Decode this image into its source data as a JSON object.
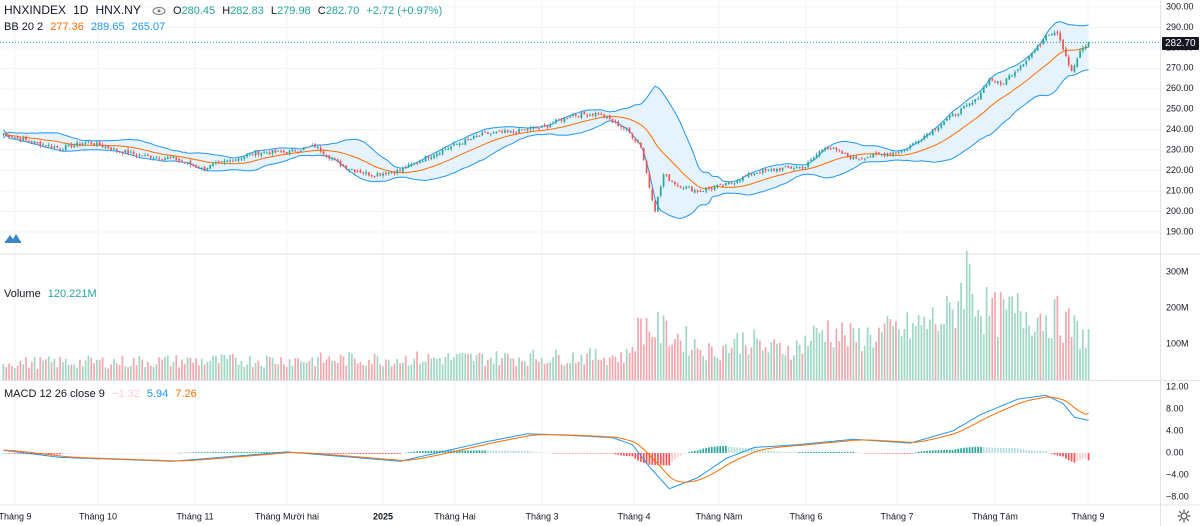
{
  "header": {
    "symbol": "HNXINDEX",
    "interval": "1D",
    "exchange": "HNX.NY",
    "open_label": "O",
    "open": "280.45",
    "high_label": "H",
    "high": "282.83",
    "low_label": "L",
    "low": "279.98",
    "close_label": "C",
    "close": "282.70",
    "change": "+2.72 (+0.97%)"
  },
  "bb_legend": {
    "name": "BB 20 2",
    "basis": "277.36",
    "upper": "289.65",
    "lower": "265.07"
  },
  "volume_legend": {
    "name": "Volume",
    "value": "120.221M"
  },
  "macd_legend": {
    "name": "MACD 12 26 close 9",
    "hist": "−1.32",
    "macd": "5.94",
    "signal": "7.26"
  },
  "last_price_tag": "282.70",
  "colors": {
    "up": "#26a69a",
    "down": "#ef5350",
    "vol_up": "#9fd7c3",
    "vol_down": "#f4a7ae",
    "bb_band": "#2196f3",
    "bb_basis": "#ff6d00",
    "bb_fill": "#e6f2fc",
    "macd": "#2196f3",
    "signal": "#ff6d00",
    "hist_up_strong": "#26a69a",
    "hist_up_weak": "#b2dfdb",
    "hist_down_strong": "#ff5252",
    "hist_down_weak": "#ffcdd2"
  },
  "chart_data": [
    {
      "type": "candlestick",
      "title": "HNXINDEX 1D HNX.NY",
      "y_ticks": [
        "300.00",
        "290.00",
        "280.00",
        "270.00",
        "260.00",
        "250.00",
        "240.00",
        "230.00",
        "220.00",
        "210.00",
        "200.00",
        "190.00"
      ],
      "ylim": [
        185,
        300
      ],
      "x_labels": [
        "Tháng 9",
        "Tháng 10",
        "Tháng 11",
        "Tháng Mười hai",
        "2025",
        "Tháng Hai",
        "Tháng 3",
        "Tháng 4",
        "Tháng Năm",
        "Tháng 6",
        "Tháng 7",
        "Tháng Tám",
        "Tháng 9"
      ],
      "close_keypoints": [
        [
          0,
          238
        ],
        [
          10,
          234
        ],
        [
          20,
          231
        ],
        [
          30,
          234
        ],
        [
          40,
          230
        ],
        [
          50,
          227
        ],
        [
          60,
          226
        ],
        [
          70,
          221
        ],
        [
          80,
          225
        ],
        [
          90,
          229
        ],
        [
          100,
          229
        ],
        [
          110,
          232
        ],
        [
          120,
          222
        ],
        [
          130,
          218
        ],
        [
          140,
          220
        ],
        [
          150,
          227
        ],
        [
          160,
          233
        ],
        [
          170,
          238
        ],
        [
          180,
          239
        ],
        [
          190,
          241
        ],
        [
          200,
          247
        ],
        [
          210,
          248
        ],
        [
          220,
          240
        ],
        [
          225,
          232
        ],
        [
          228,
          212
        ],
        [
          230,
          201
        ],
        [
          233,
          218
        ],
        [
          238,
          213
        ],
        [
          245,
          210
        ],
        [
          255,
          213
        ],
        [
          265,
          219
        ],
        [
          275,
          221
        ],
        [
          283,
          222
        ],
        [
          290,
          232
        ],
        [
          300,
          226
        ],
        [
          310,
          228
        ],
        [
          318,
          230
        ],
        [
          325,
          237
        ],
        [
          335,
          247
        ],
        [
          343,
          254
        ],
        [
          348,
          265
        ],
        [
          352,
          262
        ],
        [
          360,
          273
        ],
        [
          365,
          280
        ],
        [
          368,
          287
        ],
        [
          372,
          288
        ],
        [
          375,
          276
        ],
        [
          377,
          268
        ],
        [
          380,
          278
        ],
        [
          383,
          282.7
        ]
      ],
      "bollinger": {
        "length": 20,
        "mult": 2,
        "basis_last": 277.36,
        "upper_last": 289.65,
        "lower_last": 265.07
      }
    },
    {
      "type": "bar",
      "title": "Volume",
      "y_ticks": [
        "300M",
        "200M",
        "100M"
      ],
      "ylim": [
        0,
        330
      ],
      "unit": "M",
      "volume_keypoints": [
        [
          0,
          50
        ],
        [
          60,
          55
        ],
        [
          120,
          60
        ],
        [
          180,
          65
        ],
        [
          220,
          70
        ],
        [
          225,
          160
        ],
        [
          230,
          150
        ],
        [
          240,
          120
        ],
        [
          250,
          80
        ],
        [
          262,
          120
        ],
        [
          270,
          90
        ],
        [
          280,
          95
        ],
        [
          290,
          150
        ],
        [
          300,
          120
        ],
        [
          320,
          150
        ],
        [
          335,
          190
        ],
        [
          340,
          320
        ],
        [
          345,
          210
        ],
        [
          350,
          190
        ],
        [
          360,
          200
        ],
        [
          372,
          180
        ],
        [
          383,
          120
        ]
      ]
    },
    {
      "type": "line",
      "title": "MACD 12 26 close 9",
      "y_ticks": [
        "12.00",
        "8.00",
        "4.00",
        "0.00",
        "−4.00",
        "−8.00"
      ],
      "ylim": [
        -10,
        12.5
      ],
      "series": [
        {
          "name": "MACD",
          "last": 5.94
        },
        {
          "name": "Signal",
          "last": 7.26
        },
        {
          "name": "Histogram",
          "last": -1.32
        }
      ],
      "macd_keypoints": [
        [
          0,
          0.5
        ],
        [
          20,
          -0.8
        ],
        [
          60,
          -1.5
        ],
        [
          100,
          0.2
        ],
        [
          140,
          -1.5
        ],
        [
          170,
          2.0
        ],
        [
          185,
          3.5
        ],
        [
          200,
          3.2
        ],
        [
          215,
          2.8
        ],
        [
          222,
          1.5
        ],
        [
          228,
          -2.5
        ],
        [
          235,
          -6.5
        ],
        [
          245,
          -4.5
        ],
        [
          255,
          -1.0
        ],
        [
          265,
          1.0
        ],
        [
          280,
          1.5
        ],
        [
          300,
          2.5
        ],
        [
          320,
          1.8
        ],
        [
          335,
          4.0
        ],
        [
          345,
          7.0
        ],
        [
          358,
          9.8
        ],
        [
          368,
          10.5
        ],
        [
          374,
          9.0
        ],
        [
          378,
          6.5
        ],
        [
          383,
          5.94
        ]
      ]
    }
  ]
}
